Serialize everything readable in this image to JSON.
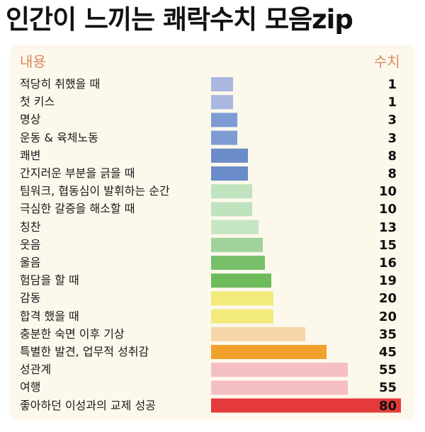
{
  "title": "인간이 느끼는 쾌락수치 모음zip",
  "header": {
    "left": "내용",
    "right": "수치"
  },
  "chart_data": {
    "type": "bar",
    "orientation": "horizontal",
    "categories": [
      "적당히 취했을 때",
      "첫 키스",
      "명상",
      "운동 & 육체노동",
      "쾌변",
      "간지러운 부분을 긁을 때",
      "팀워크, 협동심이 발휘하는 순간",
      "극심한 갈증을 해소할 때",
      "칭찬",
      "웃음",
      "울음",
      "험담을 할 때",
      "감동",
      "합격 했을 때",
      "충분한 숙면 이후 기상",
      "특별한 발견, 업무적 성취감",
      "성관계",
      "여행",
      "좋아하던 이성과의 교제 성공"
    ],
    "values": [
      1,
      1,
      3,
      3,
      8,
      8,
      10,
      10,
      13,
      15,
      16,
      19,
      20,
      20,
      35,
      45,
      55,
      55,
      80
    ],
    "colors": [
      "#aab8e0",
      "#aab8e0",
      "#7e9bd4",
      "#7e9bd4",
      "#6a8cc8",
      "#6a8cc8",
      "#bfe3bf",
      "#bfe3bf",
      "#c5e6c2",
      "#9fd39a",
      "#79c06a",
      "#6fbb5c",
      "#f2ea7a",
      "#f2ea7a",
      "#f6d6a8",
      "#f1a02c",
      "#f5bfc2",
      "#f5bfc2",
      "#e43a3a"
    ]
  }
}
